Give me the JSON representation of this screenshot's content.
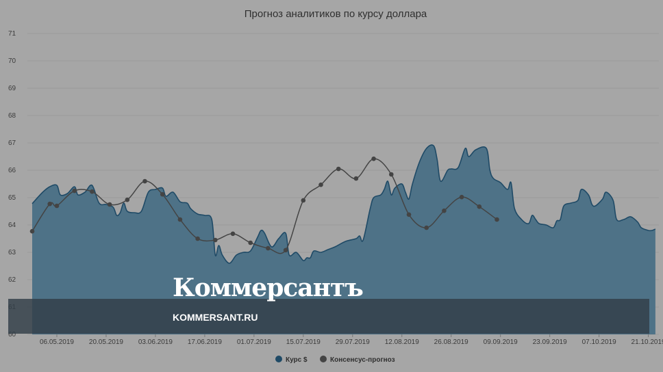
{
  "chart_data": {
    "type": "area",
    "title": "Прогноз аналитиков по курсу доллара",
    "ylim": [
      60,
      71
    ],
    "yticks": [
      "60",
      "61",
      "62",
      "63",
      "64",
      "65",
      "66",
      "67",
      "68",
      "69",
      "70",
      "71"
    ],
    "xticks": [
      "06.05.2019",
      "20.05.2019",
      "03.06.2019",
      "17.06.2019",
      "01.07.2019",
      "15.07.2019",
      "29.07.2019",
      "12.08.2019",
      "26.08.2019",
      "09.09.2019",
      "23.09.2019",
      "07.10.2019",
      "21.10.2019"
    ],
    "x_range": [
      "2019-04-29",
      "2019-10-24"
    ],
    "grid": true,
    "legend_position": "bottom-center",
    "series": [
      {
        "name": "Курс $",
        "kind": "area",
        "color": "#4e7287",
        "line_color": "#1f4a66",
        "points": [
          [
            "2019-04-29",
            64.78
          ],
          [
            "2019-05-02",
            65.2
          ],
          [
            "2019-05-04",
            65.4
          ],
          [
            "2019-05-06",
            65.45
          ],
          [
            "2019-05-07",
            65.1
          ],
          [
            "2019-05-09",
            65.15
          ],
          [
            "2019-05-11",
            65.4
          ],
          [
            "2019-05-12",
            65.1
          ],
          [
            "2019-05-14",
            65.2
          ],
          [
            "2019-05-16",
            65.45
          ],
          [
            "2019-05-18",
            64.8
          ],
          [
            "2019-05-20",
            64.75
          ],
          [
            "2019-05-22",
            64.65
          ],
          [
            "2019-05-23",
            64.35
          ],
          [
            "2019-05-24",
            64.45
          ],
          [
            "2019-05-25",
            64.8
          ],
          [
            "2019-05-26",
            64.5
          ],
          [
            "2019-05-28",
            64.45
          ],
          [
            "2019-05-30",
            64.5
          ],
          [
            "2019-06-01",
            65.2
          ],
          [
            "2019-06-03",
            65.3
          ],
          [
            "2019-06-05",
            65.35
          ],
          [
            "2019-06-06",
            65.05
          ],
          [
            "2019-06-08",
            65.2
          ],
          [
            "2019-06-10",
            64.85
          ],
          [
            "2019-06-12",
            64.8
          ],
          [
            "2019-06-13",
            64.6
          ],
          [
            "2019-06-15",
            64.4
          ],
          [
            "2019-06-17",
            64.35
          ],
          [
            "2019-06-19",
            64.2
          ],
          [
            "2019-06-20",
            62.9
          ],
          [
            "2019-06-21",
            63.25
          ],
          [
            "2019-06-22",
            62.9
          ],
          [
            "2019-06-24",
            62.6
          ],
          [
            "2019-06-26",
            62.9
          ],
          [
            "2019-06-28",
            63.0
          ],
          [
            "2019-06-30",
            63.05
          ],
          [
            "2019-07-02",
            63.55
          ],
          [
            "2019-07-03",
            63.8
          ],
          [
            "2019-07-04",
            63.7
          ],
          [
            "2019-07-06",
            63.2
          ],
          [
            "2019-07-08",
            63.5
          ],
          [
            "2019-07-10",
            63.7
          ],
          [
            "2019-07-11",
            62.9
          ],
          [
            "2019-07-13",
            63.0
          ],
          [
            "2019-07-15",
            62.7
          ],
          [
            "2019-07-16",
            62.8
          ],
          [
            "2019-07-17",
            62.8
          ],
          [
            "2019-07-18",
            63.05
          ],
          [
            "2019-07-20",
            63.0
          ],
          [
            "2019-07-22",
            63.1
          ],
          [
            "2019-07-24",
            63.2
          ],
          [
            "2019-07-27",
            63.4
          ],
          [
            "2019-07-30",
            63.5
          ],
          [
            "2019-07-31",
            63.6
          ],
          [
            "2019-08-01",
            63.45
          ],
          [
            "2019-08-03",
            64.6
          ],
          [
            "2019-08-04",
            65.0
          ],
          [
            "2019-08-06",
            65.1
          ],
          [
            "2019-08-07",
            65.3
          ],
          [
            "2019-08-08",
            65.6
          ],
          [
            "2019-08-09",
            65.1
          ],
          [
            "2019-08-10",
            65.35
          ],
          [
            "2019-08-12",
            65.5
          ],
          [
            "2019-08-13",
            65.2
          ],
          [
            "2019-08-14",
            64.95
          ],
          [
            "2019-08-15",
            65.5
          ],
          [
            "2019-08-17",
            66.3
          ],
          [
            "2019-08-19",
            66.8
          ],
          [
            "2019-08-21",
            66.9
          ],
          [
            "2019-08-22",
            66.4
          ],
          [
            "2019-08-23",
            65.6
          ],
          [
            "2019-08-25",
            66.0
          ],
          [
            "2019-08-26",
            66.05
          ],
          [
            "2019-08-28",
            66.1
          ],
          [
            "2019-08-30",
            66.8
          ],
          [
            "2019-08-31",
            66.5
          ],
          [
            "2019-09-02",
            66.75
          ],
          [
            "2019-09-05",
            66.8
          ],
          [
            "2019-09-06",
            66.0
          ],
          [
            "2019-09-07",
            65.7
          ],
          [
            "2019-09-09",
            65.55
          ],
          [
            "2019-09-11",
            65.3
          ],
          [
            "2019-09-12",
            65.55
          ],
          [
            "2019-09-13",
            64.6
          ],
          [
            "2019-09-15",
            64.2
          ],
          [
            "2019-09-17",
            64.05
          ],
          [
            "2019-09-18",
            64.35
          ],
          [
            "2019-09-19",
            64.2
          ],
          [
            "2019-09-20",
            64.05
          ],
          [
            "2019-09-22",
            64.0
          ],
          [
            "2019-09-24",
            63.9
          ],
          [
            "2019-09-25",
            64.15
          ],
          [
            "2019-09-26",
            64.2
          ],
          [
            "2019-09-27",
            64.7
          ],
          [
            "2019-09-29",
            64.8
          ],
          [
            "2019-10-01",
            64.9
          ],
          [
            "2019-10-02",
            65.3
          ],
          [
            "2019-10-04",
            65.1
          ],
          [
            "2019-10-05",
            64.75
          ],
          [
            "2019-10-06",
            64.7
          ],
          [
            "2019-10-08",
            64.95
          ],
          [
            "2019-10-09",
            65.2
          ],
          [
            "2019-10-11",
            64.9
          ],
          [
            "2019-10-12",
            64.2
          ],
          [
            "2019-10-14",
            64.2
          ],
          [
            "2019-10-16",
            64.3
          ],
          [
            "2019-10-18",
            64.1
          ],
          [
            "2019-10-19",
            63.9
          ],
          [
            "2019-10-21",
            63.8
          ],
          [
            "2019-10-22",
            63.8
          ],
          [
            "2019-10-23",
            63.85
          ]
        ]
      },
      {
        "name": "Консенсус-прогноз",
        "kind": "line",
        "color": "#444444",
        "points": [
          [
            "2019-04-29",
            63.77
          ],
          [
            "2019-05-04",
            64.77
          ],
          [
            "2019-05-06",
            64.7
          ],
          [
            "2019-05-11",
            65.25
          ],
          [
            "2019-05-16",
            65.22
          ],
          [
            "2019-05-21",
            64.75
          ],
          [
            "2019-05-26",
            64.92
          ],
          [
            "2019-05-31",
            65.6
          ],
          [
            "2019-06-05",
            65.12
          ],
          [
            "2019-06-10",
            64.2
          ],
          [
            "2019-06-15",
            63.5
          ],
          [
            "2019-06-20",
            63.45
          ],
          [
            "2019-06-25",
            63.68
          ],
          [
            "2019-06-30",
            63.35
          ],
          [
            "2019-07-05",
            63.15
          ],
          [
            "2019-07-10",
            63.08
          ],
          [
            "2019-07-15",
            64.9
          ],
          [
            "2019-07-20",
            65.47
          ],
          [
            "2019-07-25",
            66.05
          ],
          [
            "2019-07-30",
            65.7
          ],
          [
            "2019-08-04",
            66.42
          ],
          [
            "2019-08-09",
            65.85
          ],
          [
            "2019-08-14",
            64.38
          ],
          [
            "2019-08-19",
            63.9
          ],
          [
            "2019-08-24",
            64.52
          ],
          [
            "2019-08-29",
            65.02
          ],
          [
            "2019-09-03",
            64.67
          ],
          [
            "2019-09-08",
            64.2
          ]
        ]
      }
    ]
  },
  "watermark": {
    "logo": "Коммерсантъ",
    "site": "KOMMERSANT.RU"
  }
}
